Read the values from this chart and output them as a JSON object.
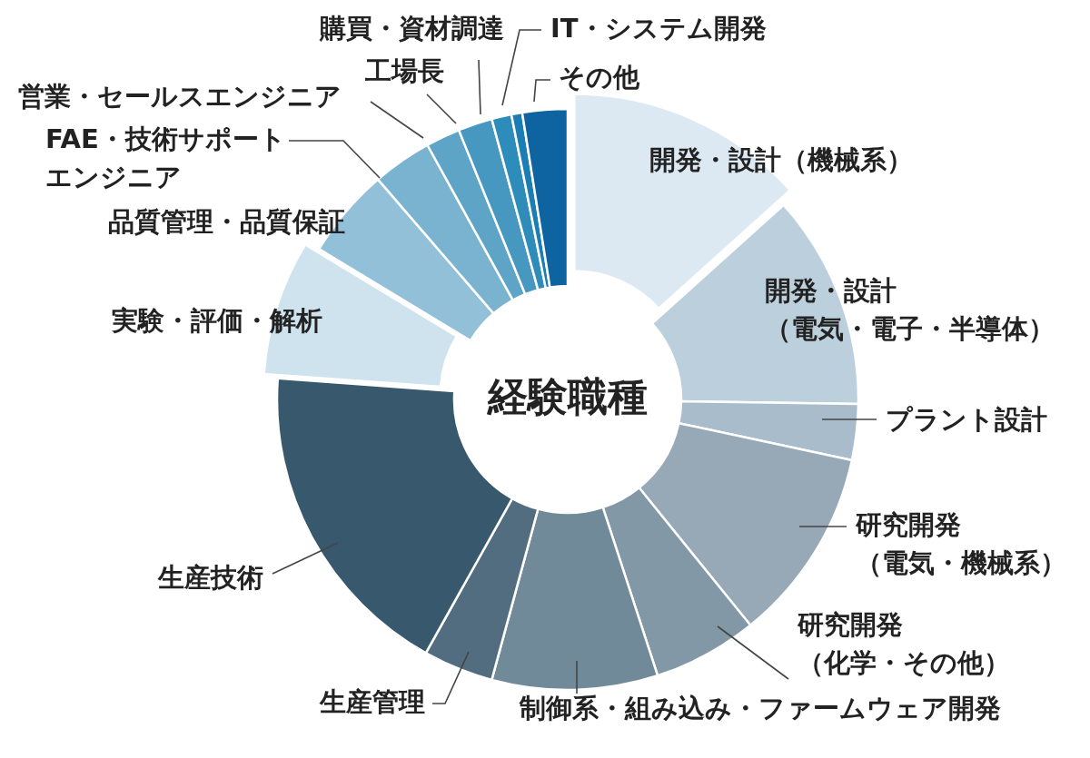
{
  "chart_data": {
    "type": "donut",
    "title": "経験職種",
    "categories": [
      "開発・設計（機械系）",
      "開発・設計（電気・電子・半導体）",
      "プラント設計",
      "研究開発（電気・機械系）",
      "研究開発（化学・その他）",
      "制御系・組み込み・ファームウェア開発",
      "生産管理",
      "生産技術",
      "実験・評価・解析",
      "品質管理・品質保証",
      "FAE・技術サポートエンジニア",
      "営業・セールスエンジニア",
      "工場長",
      "購買・資材調達",
      "IT・システム開発",
      "その他"
    ],
    "values": [
      13.3,
      11.9,
      3.1,
      10.8,
      5.8,
      9.2,
      3.9,
      18.0,
      7.5,
      5.0,
      3.3,
      1.9,
      1.9,
      1.1,
      0.6,
      2.5
    ],
    "colors": [
      "#dce9f2",
      "#bccfdc",
      "#a9bccb",
      "#97a9b6",
      "#8298a6",
      "#718a99",
      "#526d80",
      "#38596d",
      "#cfe3ef",
      "#92c0d9",
      "#7ab3d0",
      "#5ea4c7",
      "#4698c0",
      "#2e8cbb",
      "#1a7db3",
      "#0d64a0"
    ]
  }
}
